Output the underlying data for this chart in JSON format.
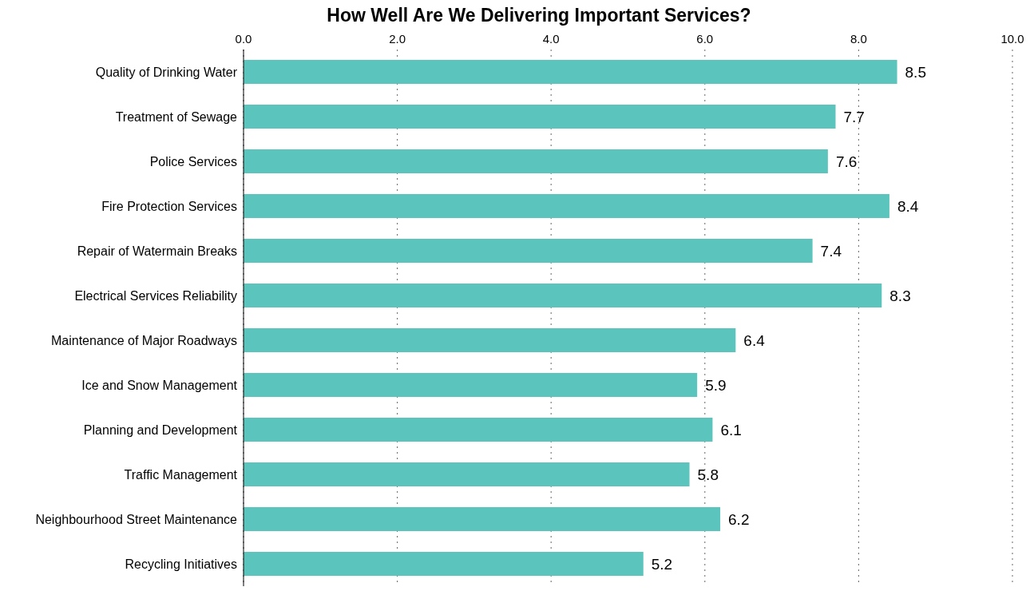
{
  "chart_data": {
    "type": "bar",
    "orientation": "horizontal",
    "title": "How Well Are We Delivering Important Services?",
    "categories": [
      "Quality of Drinking Water",
      "Treatment of Sewage",
      "Police Services",
      "Fire Protection Services",
      "Repair of Watermain Breaks",
      "Electrical Services Reliability",
      "Maintenance of Major Roadways",
      "Ice and Snow Management",
      "Planning and Development",
      "Traffic Management",
      "Neighbourhood Street Maintenance",
      "Recycling Initiatives"
    ],
    "values": [
      8.5,
      7.7,
      7.6,
      8.4,
      7.4,
      8.3,
      6.4,
      5.9,
      6.1,
      5.8,
      6.2,
      5.2
    ],
    "color": "#5bc5bd",
    "xlim": [
      0,
      10
    ],
    "xticks": [
      {
        "value": 0,
        "label": "0.0"
      },
      {
        "value": 2,
        "label": "2.0"
      },
      {
        "value": 4,
        "label": "4.0"
      },
      {
        "value": 6,
        "label": "6.0"
      },
      {
        "value": 8,
        "label": "8.0"
      },
      {
        "value": 10,
        "label": "10.0"
      }
    ],
    "grid": "x",
    "data_labels": true,
    "legend": false
  }
}
